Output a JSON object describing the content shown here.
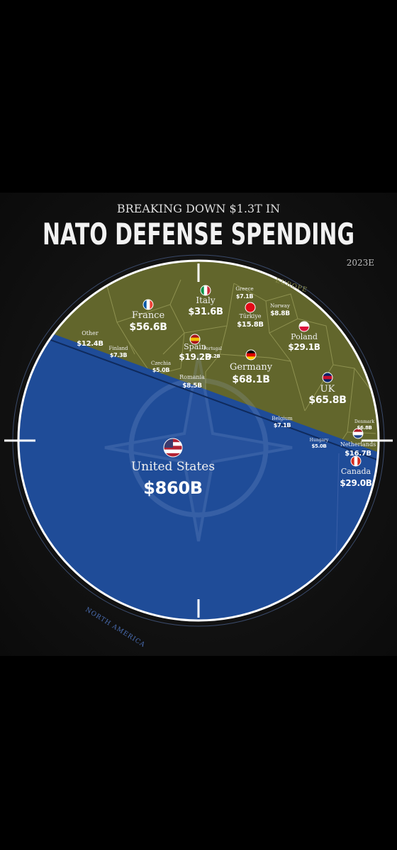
{
  "header": {
    "kicker": "BREAKING DOWN $1.3T IN",
    "title": "NATO DEFENSE SPENDING",
    "year": "2023E"
  },
  "regions": {
    "europe": "EUROPE",
    "north_america": "NORTH AMERICA"
  },
  "countries": [
    {
      "name": "United States",
      "value": "$860B"
    },
    {
      "name": "Canada",
      "value": "$29.0B"
    },
    {
      "name": "Germany",
      "value": "$68.1B"
    },
    {
      "name": "UK",
      "value": "$65.8B"
    },
    {
      "name": "France",
      "value": "$56.6B"
    },
    {
      "name": "Italy",
      "value": "$31.6B"
    },
    {
      "name": "Poland",
      "value": "$29.1B"
    },
    {
      "name": "Spain",
      "value": "$19.2B"
    },
    {
      "name": "Netherlands",
      "value": "$16.7B"
    },
    {
      "name": "Türkiye",
      "value": "$15.8B"
    },
    {
      "name": "Other",
      "value": "$12.4B"
    },
    {
      "name": "Norway",
      "value": "$8.8B"
    },
    {
      "name": "Romania",
      "value": "$8.5B"
    },
    {
      "name": "Finland",
      "value": "$7.3B"
    },
    {
      "name": "Greece",
      "value": "$7.1B"
    },
    {
      "name": "Belgium",
      "value": "$7.1B"
    },
    {
      "name": "Denmark",
      "value": "$6.8B"
    },
    {
      "name": "Czechia",
      "value": "$5.0B"
    },
    {
      "name": "Hungary",
      "value": "$5.0B"
    },
    {
      "name": "Portugal",
      "value": "$4.2B"
    }
  ]
}
